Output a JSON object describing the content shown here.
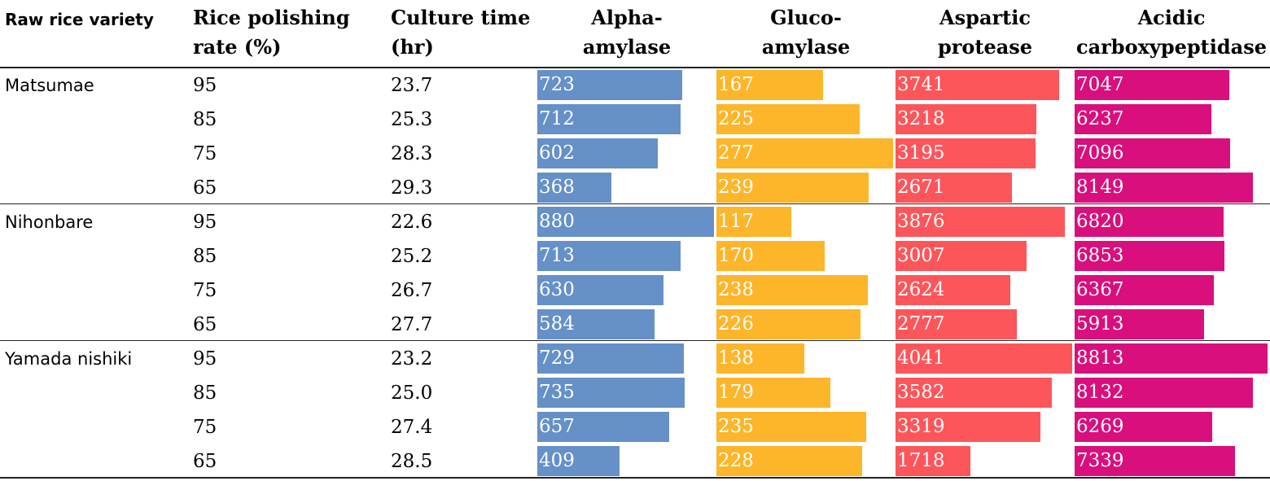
{
  "headers": {
    "variety": "Raw rice variety",
    "polishing": [
      "Rice polishing",
      "rate (%)"
    ],
    "culture": [
      "Culture time",
      "(hr)"
    ],
    "alpha": [
      "Alpha-",
      "amylase"
    ],
    "gluco": [
      "Gluco-",
      "amylase"
    ],
    "aspartic": [
      "Aspartic",
      "protease"
    ],
    "acidic": [
      "Acidic",
      "carboxypeptidase"
    ]
  },
  "colors": {
    "alpha": "#6590c8",
    "gluco": "#fdb52a",
    "aspartic": "#fc565b",
    "acidic": "#d80f7c"
  },
  "chart_data": {
    "type": "table",
    "columns": [
      "Raw rice variety",
      "Rice polishing rate (%)",
      "Culture time (hr)",
      "Alpha-amylase",
      "Gluco-amylase",
      "Aspartic protease",
      "Acidic carboxypeptidase"
    ],
    "groups": [
      {
        "variety": "Matsumae",
        "rows": [
          {
            "rate": "95",
            "time": "23.7",
            "alpha": 723,
            "gluco": 167,
            "aspartic": 3741,
            "acidic": 7047
          },
          {
            "rate": "85",
            "time": "25.3",
            "alpha": 712,
            "gluco": 225,
            "aspartic": 3218,
            "acidic": 6237
          },
          {
            "rate": "75",
            "time": "28.3",
            "alpha": 602,
            "gluco": 277,
            "aspartic": 3195,
            "acidic": 7096
          },
          {
            "rate": "65",
            "time": "29.3",
            "alpha": 368,
            "gluco": 239,
            "aspartic": 2671,
            "acidic": 8149
          }
        ]
      },
      {
        "variety": "Nihonbare",
        "rows": [
          {
            "rate": "95",
            "time": "22.6",
            "alpha": 880,
            "gluco": 117,
            "aspartic": 3876,
            "acidic": 6820
          },
          {
            "rate": "85",
            "time": "25.2",
            "alpha": 713,
            "gluco": 170,
            "aspartic": 3007,
            "acidic": 6853
          },
          {
            "rate": "75",
            "time": "26.7",
            "alpha": 630,
            "gluco": 238,
            "aspartic": 2624,
            "acidic": 6367
          },
          {
            "rate": "65",
            "time": "27.7",
            "alpha": 584,
            "gluco": 226,
            "aspartic": 2777,
            "acidic": 5913
          }
        ]
      },
      {
        "variety": "Yamada nishiki",
        "rows": [
          {
            "rate": "95",
            "time": "23.2",
            "alpha": 729,
            "gluco": 138,
            "aspartic": 4041,
            "acidic": 8813
          },
          {
            "rate": "85",
            "time": "25.0",
            "alpha": 735,
            "gluco": 179,
            "aspartic": 3582,
            "acidic": 8132
          },
          {
            "rate": "75",
            "time": "27.4",
            "alpha": 657,
            "gluco": 235,
            "aspartic": 3319,
            "acidic": 6269
          },
          {
            "rate": "65",
            "time": "28.5",
            "alpha": 409,
            "gluco": 228,
            "aspartic": 1718,
            "acidic": 7339
          }
        ]
      }
    ]
  }
}
